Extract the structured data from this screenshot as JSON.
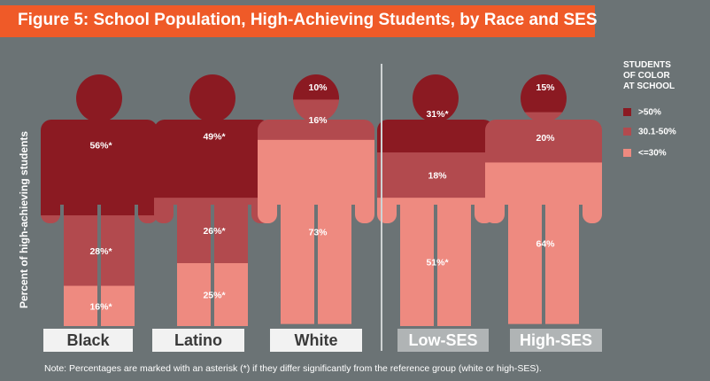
{
  "title": "Figure 5:  School Population, High-Achieving Students, by Race and SES",
  "note": "Note: Percentages are marked with an asterisk (*) if they differ significantly from the reference group (white or high-SES).",
  "legend": {
    "title_lines": [
      "STUDENTS",
      "OF COLOR",
      "AT SCHOOL"
    ],
    "items": [
      {
        "label": ">50%",
        "color": "#8b1a22"
      },
      {
        "label": "30.1-50%",
        "color": "#b24a4e"
      },
      {
        "label": "<=30%",
        "color": "#ee8a80"
      }
    ]
  },
  "colors": {
    "title_bar": "#ef5a28",
    "background": "#6b7375",
    "high": "#8b1a22",
    "mid": "#b24a4e",
    "low": "#ee8a80"
  },
  "chart_data": {
    "type": "bar",
    "stacked": true,
    "orientation": "vertical",
    "ylabel": "Percent of high-achieving students",
    "ylim": [
      0,
      100
    ],
    "categories": [
      "Black",
      "Latino",
      "White",
      "Low-SES",
      "High-SES"
    ],
    "category_style": [
      "light",
      "light",
      "light",
      "grey",
      "grey"
    ],
    "series": [
      {
        "name": ">50%",
        "values": [
          56,
          49,
          10,
          31,
          15
        ],
        "significant": [
          true,
          true,
          false,
          true,
          false
        ]
      },
      {
        "name": "30.1-50%",
        "values": [
          28,
          26,
          16,
          18,
          20
        ],
        "significant": [
          true,
          true,
          false,
          false,
          false
        ]
      },
      {
        "name": "<=30%",
        "values": [
          16,
          25,
          73,
          51,
          64
        ],
        "significant": [
          true,
          true,
          false,
          true,
          false
        ]
      }
    ],
    "value_suffix": "%",
    "significance_marker": "*"
  }
}
